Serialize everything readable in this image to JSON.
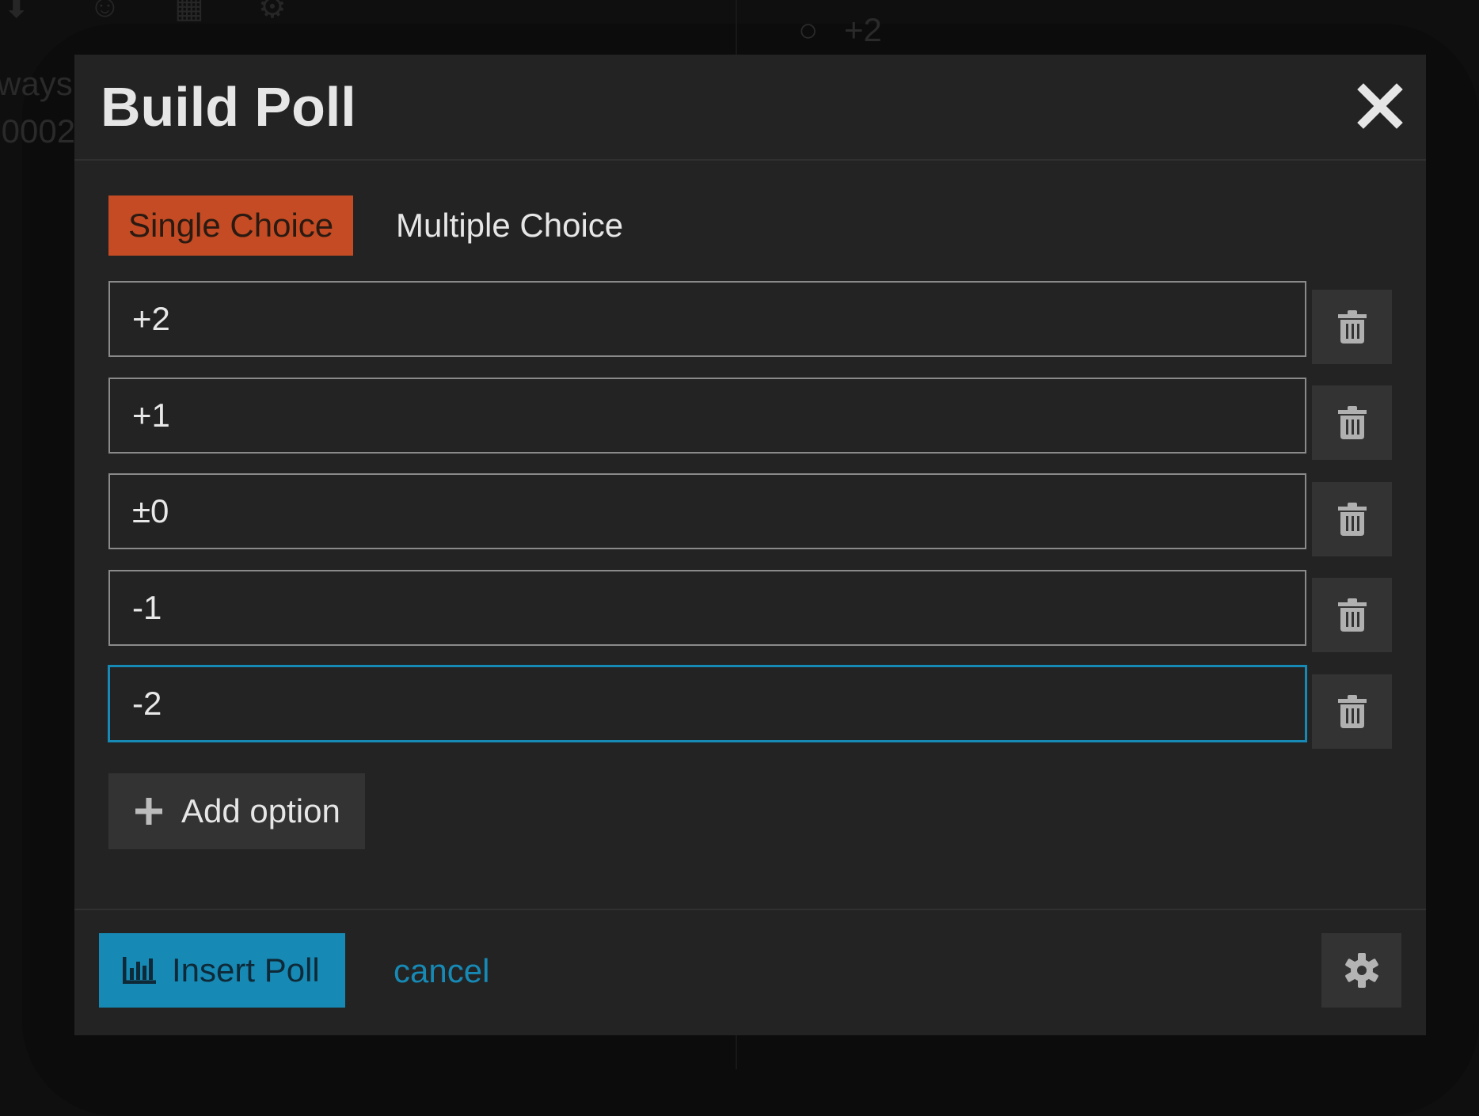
{
  "background": {
    "text_ways": "ways",
    "text_number": ".0002",
    "text_option": "+2"
  },
  "dialog": {
    "title": "Build Poll",
    "tabs": [
      {
        "label": "Single Choice",
        "active": true
      },
      {
        "label": "Multiple Choice",
        "active": false
      }
    ],
    "options": [
      "+2",
      "+1",
      "±0",
      "-1",
      "-2"
    ],
    "add_option_label": "Add option",
    "insert_label": "Insert Poll",
    "cancel_label": "cancel"
  },
  "colors": {
    "accent_orange": "#c44b23",
    "accent_blue": "#1789b5",
    "dialog_bg": "#232323"
  }
}
